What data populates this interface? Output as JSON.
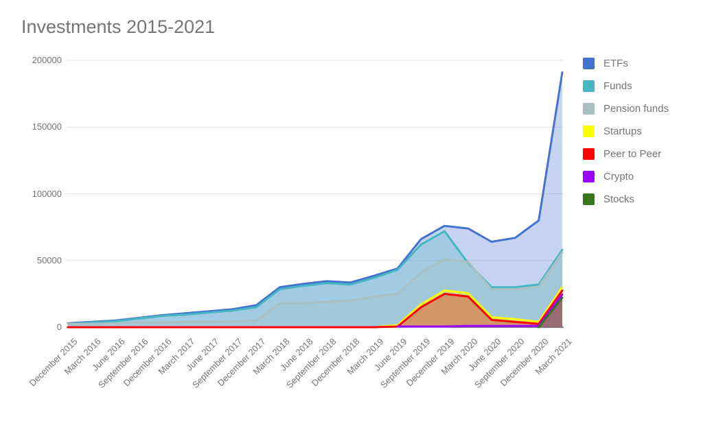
{
  "title": "Investments 2015-2021",
  "chart_data": {
    "type": "area",
    "title": "Investments 2015-2021",
    "categories": [
      "December 2015",
      "March 2016",
      "June 2016",
      "September 2016",
      "December 2016",
      "March 2017",
      "June 2017",
      "September 2017",
      "December 2017",
      "March 2018",
      "June 2018",
      "September 2018",
      "December 2018",
      "March 2019",
      "June 2019",
      "September 2019",
      "December 2019",
      "March 2020",
      "June 2020",
      "September 2020",
      "December 2020",
      "March 2021"
    ],
    "series": [
      {
        "name": "ETFs",
        "color": "#4472D0",
        "values": [
          3000,
          4000,
          5000,
          7000,
          9000,
          10500,
          12000,
          13500,
          16500,
          30000,
          32500,
          34500,
          33500,
          38500,
          44000,
          66000,
          76000,
          74000,
          64000,
          67000,
          80000,
          191000
        ]
      },
      {
        "name": "Funds",
        "color": "#46B5C4",
        "values": [
          2500,
          3500,
          4500,
          6500,
          8500,
          9500,
          11000,
          12500,
          15000,
          28500,
          31000,
          33000,
          32000,
          37000,
          43000,
          62000,
          72000,
          48000,
          30000,
          30000,
          32000,
          58000
        ]
      },
      {
        "name": "Pension funds",
        "color": "#A9BFC3",
        "values": [
          2500,
          2500,
          3000,
          3500,
          3500,
          4000,
          4000,
          4500,
          5000,
          18000,
          18000,
          19000,
          20000,
          23000,
          25000,
          41000,
          51000,
          49000,
          28500,
          28500,
          30500,
          56000
        ]
      },
      {
        "name": "Startups",
        "color": "#FFFF00",
        "values": [
          0,
          0,
          0,
          0,
          0,
          0,
          0,
          0,
          0,
          0,
          0,
          0,
          0,
          0,
          1500,
          17000,
          27500,
          25500,
          7500,
          6000,
          4000,
          30000
        ]
      },
      {
        "name": "Peer to Peer",
        "color": "#FF0000",
        "values": [
          0,
          0,
          0,
          0,
          0,
          0,
          0,
          0,
          0,
          0,
          0,
          0,
          0,
          0,
          500,
          15000,
          25000,
          23000,
          5500,
          4000,
          2500,
          27500
        ]
      },
      {
        "name": "Crypto",
        "color": "#9900FF",
        "values": [
          null,
          null,
          null,
          null,
          null,
          null,
          null,
          null,
          null,
          null,
          null,
          null,
          null,
          null,
          500,
          500,
          500,
          1000,
          1000,
          1000,
          1000,
          24500
        ]
      },
      {
        "name": "Stocks",
        "color": "#38761D",
        "values": [
          null,
          null,
          null,
          null,
          null,
          null,
          null,
          null,
          null,
          null,
          null,
          null,
          null,
          null,
          null,
          null,
          null,
          null,
          null,
          null,
          0,
          22000
        ]
      }
    ],
    "ylim": [
      0,
      200000
    ],
    "yticks": [
      0,
      50000,
      100000,
      150000,
      200000
    ],
    "area_opacity": 0.3,
    "grid": true,
    "legend_position": "right",
    "axis_color": "#757575",
    "gridline_color": "#e3e3e3",
    "baseline_color": "#424242"
  }
}
